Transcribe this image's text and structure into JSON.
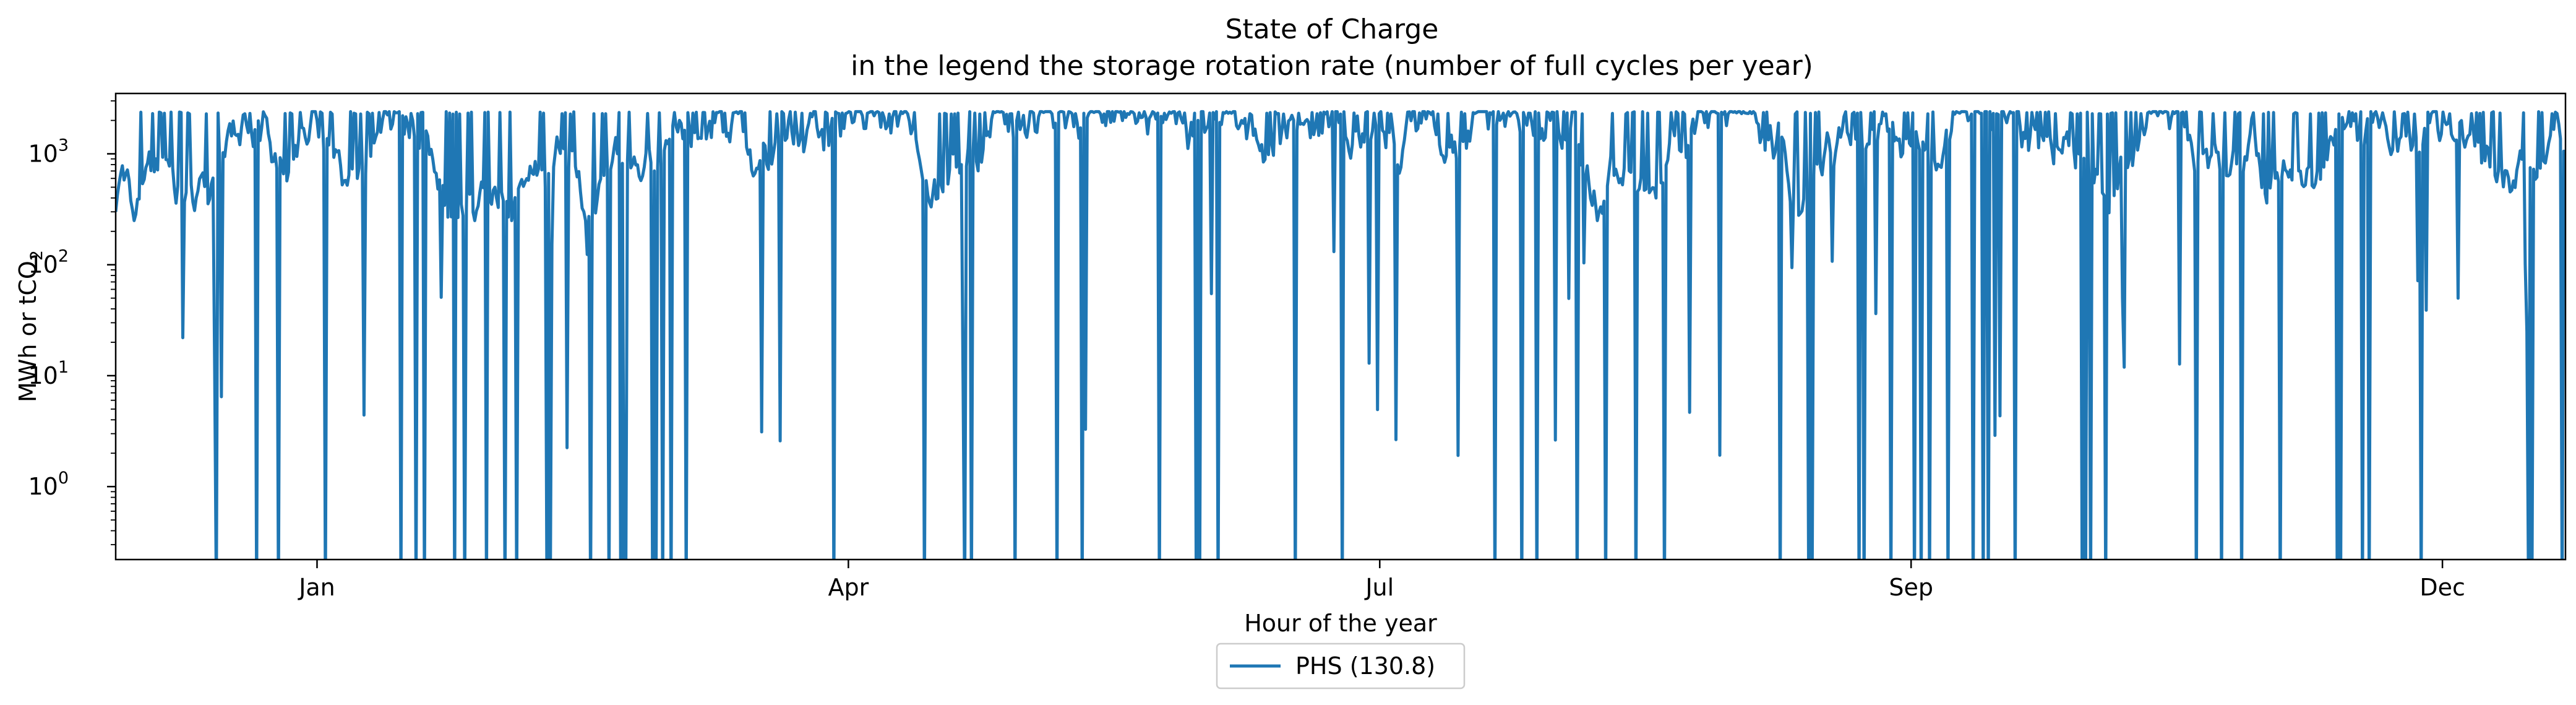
{
  "chart_data": {
    "type": "line",
    "title": "State of Charge",
    "subtitle": "in the legend the storage rotation rate (number of full cycles per year)",
    "xlabel": "Hour of the year",
    "ylabel_main": "MWh or tCO",
    "ylabel_sub": "2",
    "yscale": "log",
    "ylim": [
      0.22,
      3500
    ],
    "xlim": [
      0,
      8760
    ],
    "y_ticks": [
      {
        "value": 1,
        "base": "10",
        "exp": "0"
      },
      {
        "value": 10,
        "base": "10",
        "exp": "1"
      },
      {
        "value": 100,
        "base": "10",
        "exp": "2"
      },
      {
        "value": 1000,
        "base": "10",
        "exp": "3"
      }
    ],
    "x_ticks": [
      {
        "value": 720,
        "label": "Jan"
      },
      {
        "value": 2620,
        "label": "Apr"
      },
      {
        "value": 4520,
        "label": "Jul"
      },
      {
        "value": 6420,
        "label": "Sep"
      },
      {
        "value": 8320,
        "label": "Dec"
      }
    ],
    "series": [
      {
        "name": "PHS (130.8)",
        "color": "#1f77b4",
        "peak_value": 2400,
        "sample_step_hours": 6
      }
    ],
    "legend": {
      "position": "bottom-center",
      "label": "PHS (130.8)"
    },
    "grid": false
  }
}
